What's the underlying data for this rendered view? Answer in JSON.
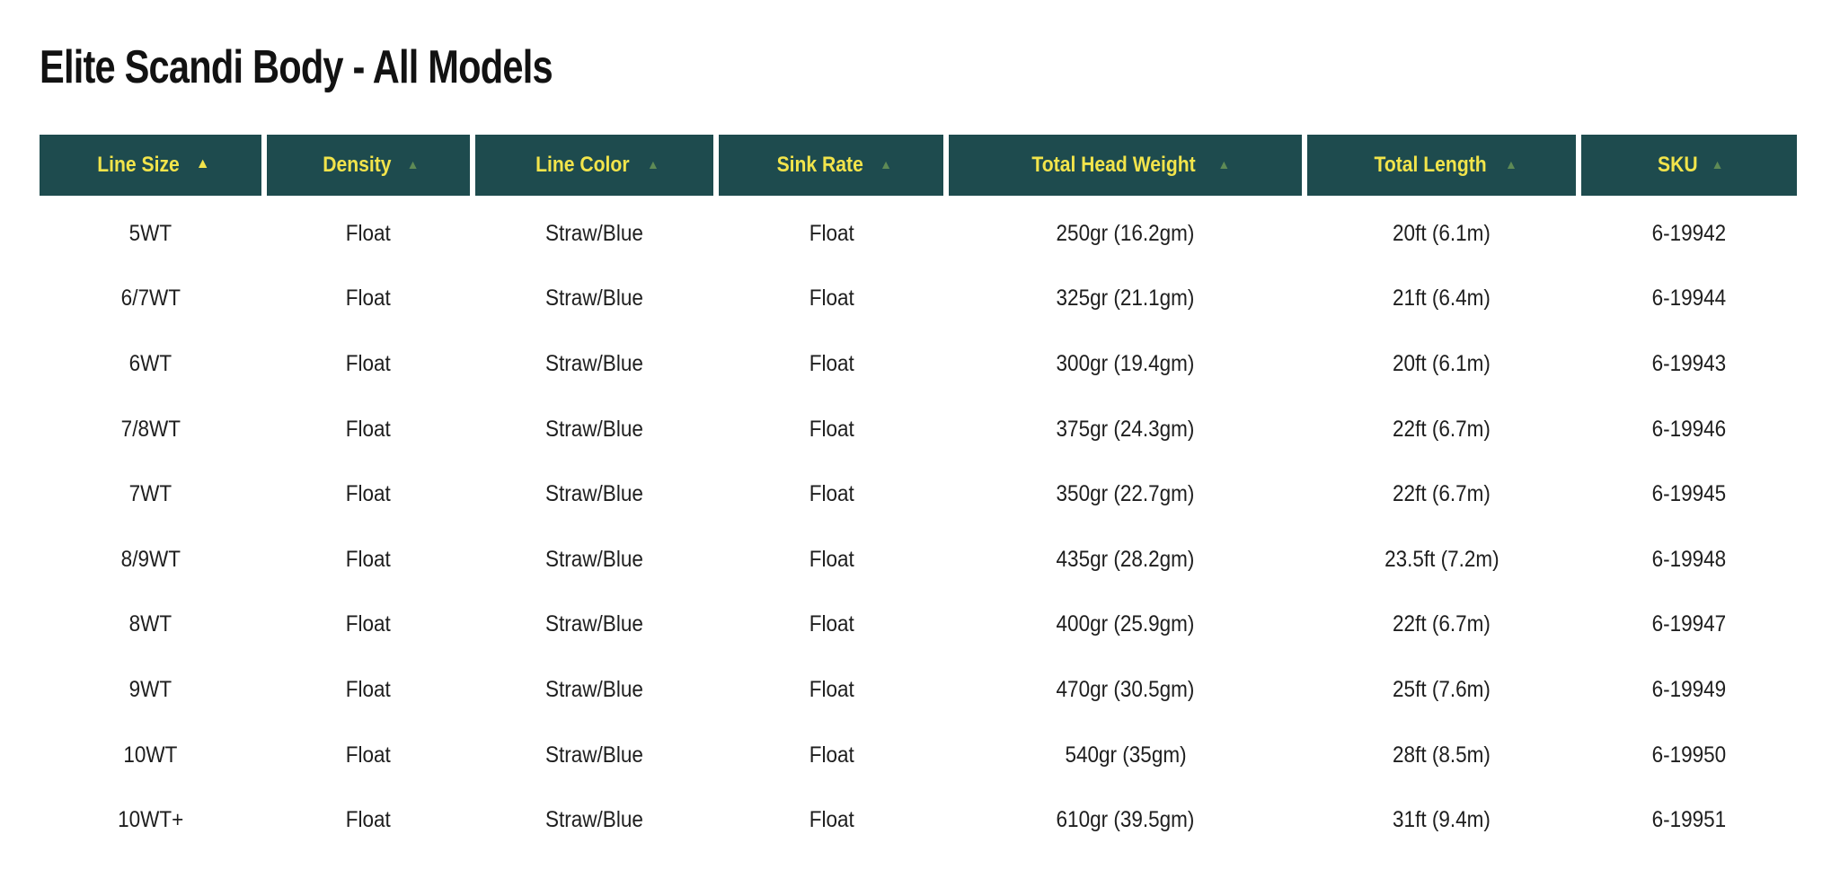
{
  "page": {
    "title": "Elite Scandi Body - All Models"
  },
  "colors": {
    "header_bg": "#1e4b4e",
    "header_text": "#f2e44b",
    "arrow_active": "#f2e44b",
    "arrow_inactive": "#5e8a55",
    "body_text": "#1e1e1e",
    "page_bg": "#ffffff"
  },
  "table": {
    "sort_icon": "▲",
    "columns": [
      {
        "key": "line_size",
        "label": "Line Size",
        "sort_active": true
      },
      {
        "key": "density",
        "label": "Density",
        "sort_active": false
      },
      {
        "key": "line_color",
        "label": "Line Color",
        "sort_active": false
      },
      {
        "key": "sink_rate",
        "label": "Sink Rate",
        "sort_active": false
      },
      {
        "key": "total_head_weight",
        "label": "Total Head Weight",
        "sort_active": false
      },
      {
        "key": "total_length",
        "label": "Total Length",
        "sort_active": false
      },
      {
        "key": "sku",
        "label": "SKU",
        "sort_active": false
      }
    ],
    "rows": [
      {
        "line_size": "5WT",
        "density": "Float",
        "line_color": "Straw/Blue",
        "sink_rate": "Float",
        "total_head_weight": "250gr (16.2gm)",
        "total_length": "20ft (6.1m)",
        "sku": "6-19942"
      },
      {
        "line_size": "6/7WT",
        "density": "Float",
        "line_color": "Straw/Blue",
        "sink_rate": "Float",
        "total_head_weight": "325gr (21.1gm)",
        "total_length": "21ft (6.4m)",
        "sku": "6-19944"
      },
      {
        "line_size": "6WT",
        "density": "Float",
        "line_color": "Straw/Blue",
        "sink_rate": "Float",
        "total_head_weight": "300gr (19.4gm)",
        "total_length": "20ft (6.1m)",
        "sku": "6-19943"
      },
      {
        "line_size": "7/8WT",
        "density": "Float",
        "line_color": "Straw/Blue",
        "sink_rate": "Float",
        "total_head_weight": "375gr (24.3gm)",
        "total_length": "22ft (6.7m)",
        "sku": "6-19946"
      },
      {
        "line_size": "7WT",
        "density": "Float",
        "line_color": "Straw/Blue",
        "sink_rate": "Float",
        "total_head_weight": "350gr (22.7gm)",
        "total_length": "22ft (6.7m)",
        "sku": "6-19945"
      },
      {
        "line_size": "8/9WT",
        "density": "Float",
        "line_color": "Straw/Blue",
        "sink_rate": "Float",
        "total_head_weight": "435gr (28.2gm)",
        "total_length": "23.5ft (7.2m)",
        "sku": "6-19948"
      },
      {
        "line_size": "8WT",
        "density": "Float",
        "line_color": "Straw/Blue",
        "sink_rate": "Float",
        "total_head_weight": "400gr (25.9gm)",
        "total_length": "22ft (6.7m)",
        "sku": "6-19947"
      },
      {
        "line_size": "9WT",
        "density": "Float",
        "line_color": "Straw/Blue",
        "sink_rate": "Float",
        "total_head_weight": "470gr (30.5gm)",
        "total_length": "25ft (7.6m)",
        "sku": "6-19949"
      },
      {
        "line_size": "10WT",
        "density": "Float",
        "line_color": "Straw/Blue",
        "sink_rate": "Float",
        "total_head_weight": "540gr (35gm)",
        "total_length": "28ft (8.5m)",
        "sku": "6-19950"
      },
      {
        "line_size": "10WT+",
        "density": "Float",
        "line_color": "Straw/Blue",
        "sink_rate": "Float",
        "total_head_weight": "610gr (39.5gm)",
        "total_length": "31ft (9.4m)",
        "sku": "6-19951"
      }
    ]
  }
}
